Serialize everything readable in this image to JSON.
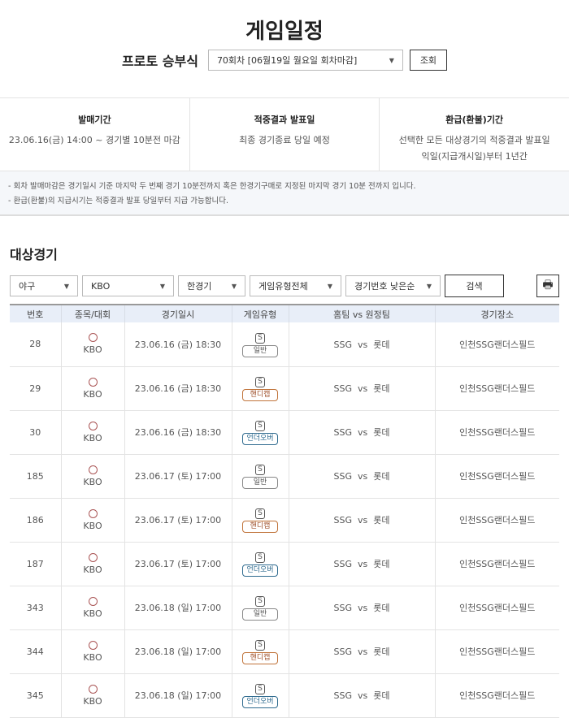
{
  "page": {
    "title": "게임일정",
    "round_label": "프로토 승부식",
    "round_select": "70회차 [06월19일 월요일 회차마감]",
    "search_button": "조회"
  },
  "info": [
    {
      "title": "발매기간",
      "lines": [
        "23.06.16(금) 14:00 ~ 경기별 10분전 마감"
      ]
    },
    {
      "title": "적중결과 발표일",
      "lines": [
        "최종 경기종료 당일 예정"
      ]
    },
    {
      "title": "환급(환불)기간",
      "lines": [
        "선택한 모든 대상경기의 적중결과 발표일",
        "익일(지급개시일)부터 1년간"
      ]
    }
  ],
  "notes": [
    "- 회차 발매마감은 경기일시 기준 마지막 두 번째 경기 10분전까지 혹은 한경기구매로 지정된 마지막 경기 10분 전까지 입니다.",
    "- 환급(환불)의 지급시기는 적중결과 발표 당일부터 지급 가능합니다."
  ],
  "section_title": "대상경기",
  "filters": {
    "sport": "야구",
    "league": "KBO",
    "match": "한경기",
    "game_type": "게임유형전체",
    "sort": "경기번호 낮은순",
    "search": "검색"
  },
  "badge_colors": {
    "일반": "#888888",
    "핸디캡": "#c0733a",
    "언더오버": "#2f6b8f"
  },
  "table": {
    "headers": [
      "번호",
      "종목/대회",
      "경기일시",
      "게임유형",
      "홈팀 vs 원정팀",
      "경기장소"
    ],
    "rows": [
      {
        "no": "28",
        "league": "KBO",
        "date": "23.06.16 (금) 18:30",
        "mark": "S",
        "type": "일반",
        "match": "SSG  vs  롯데",
        "venue": "인천SSG랜더스필드"
      },
      {
        "no": "29",
        "league": "KBO",
        "date": "23.06.16 (금) 18:30",
        "mark": "S",
        "type": "핸디캡",
        "match": "SSG  vs  롯데",
        "venue": "인천SSG랜더스필드"
      },
      {
        "no": "30",
        "league": "KBO",
        "date": "23.06.16 (금) 18:30",
        "mark": "S",
        "type": "언더오버",
        "match": "SSG  vs  롯데",
        "venue": "인천SSG랜더스필드"
      },
      {
        "no": "185",
        "league": "KBO",
        "date": "23.06.17 (토) 17:00",
        "mark": "S",
        "type": "일반",
        "match": "SSG  vs  롯데",
        "venue": "인천SSG랜더스필드"
      },
      {
        "no": "186",
        "league": "KBO",
        "date": "23.06.17 (토) 17:00",
        "mark": "S",
        "type": "핸디캡",
        "match": "SSG  vs  롯데",
        "venue": "인천SSG랜더스필드"
      },
      {
        "no": "187",
        "league": "KBO",
        "date": "23.06.17 (토) 17:00",
        "mark": "S",
        "type": "언더오버",
        "match": "SSG  vs  롯데",
        "venue": "인천SSG랜더스필드"
      },
      {
        "no": "343",
        "league": "KBO",
        "date": "23.06.18 (일) 17:00",
        "mark": "S",
        "type": "일반",
        "match": "SSG  vs  롯데",
        "venue": "인천SSG랜더스필드"
      },
      {
        "no": "344",
        "league": "KBO",
        "date": "23.06.18 (일) 17:00",
        "mark": "S",
        "type": "핸디캡",
        "match": "SSG  vs  롯데",
        "venue": "인천SSG랜더스필드"
      },
      {
        "no": "345",
        "league": "KBO",
        "date": "23.06.18 (일) 17:00",
        "mark": "S",
        "type": "언더오버",
        "match": "SSG  vs  롯데",
        "venue": "인천SSG랜더스필드"
      }
    ]
  }
}
